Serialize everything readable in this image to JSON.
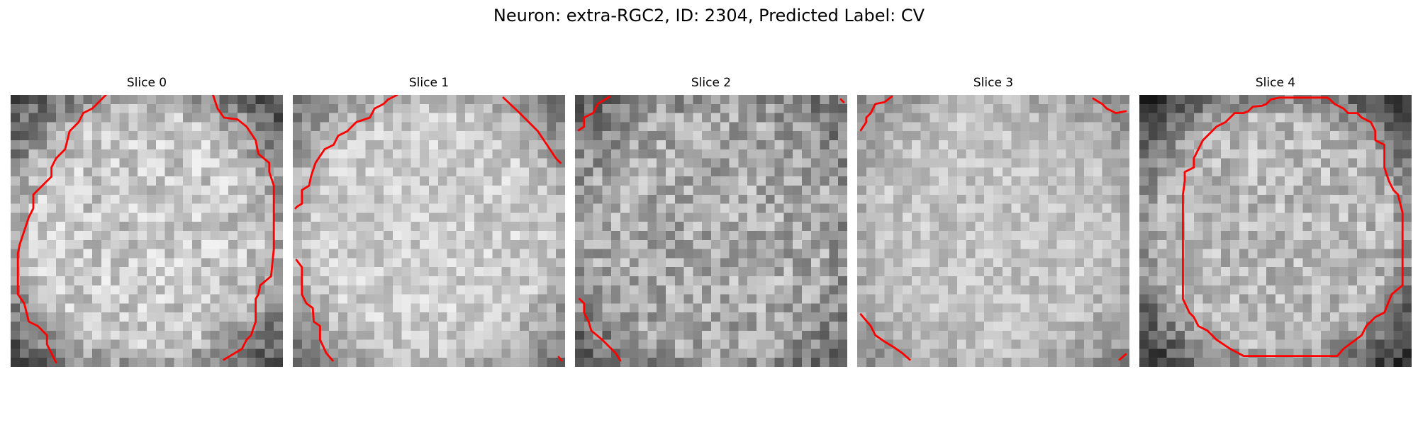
{
  "figure": {
    "title": "Neuron: extra-RGC2, ID: 2304, Predicted Label: CV"
  },
  "contour_color": "#ff0000",
  "slices": [
    {
      "title": "Slice 0",
      "bright": 200,
      "edge": 105,
      "fall": 0.22,
      "noise": 42,
      "seed": 11
    },
    {
      "title": "Slice 1",
      "bright": 205,
      "edge": 140,
      "fall": 0.14,
      "noise": 34,
      "seed": 23
    },
    {
      "title": "Slice 2",
      "bright": 170,
      "edge": 120,
      "fall": 0.16,
      "noise": 48,
      "seed": 37
    },
    {
      "title": "Slice 3",
      "bright": 195,
      "edge": 150,
      "fall": 0.1,
      "noise": 30,
      "seed": 41
    },
    {
      "title": "Slice 4",
      "bright": 185,
      "edge": 80,
      "fall": 0.28,
      "noise": 40,
      "seed": 53
    }
  ]
}
